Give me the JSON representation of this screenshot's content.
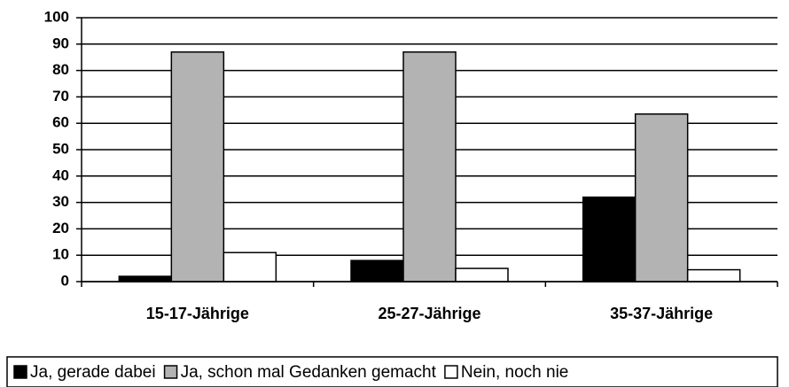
{
  "chart_data": {
    "type": "bar",
    "categories": [
      "15-17-Jährige",
      "25-27-Jährige",
      "35-37-Jährige"
    ],
    "series": [
      {
        "name": "Ja, gerade dabei",
        "color": "#000000",
        "values": [
          2,
          8,
          32
        ]
      },
      {
        "name": "Ja, schon mal Gedanken gemacht",
        "color": "#b3b3b3",
        "values": [
          87,
          87,
          63.5
        ]
      },
      {
        "name": "Nein, noch nie",
        "color": "#ffffff",
        "values": [
          11,
          5,
          4.5
        ]
      }
    ],
    "ylim": [
      0,
      100
    ],
    "yticks": [
      0,
      10,
      20,
      30,
      40,
      50,
      60,
      70,
      80,
      90,
      100
    ],
    "grid": true,
    "legend": "bottom"
  }
}
